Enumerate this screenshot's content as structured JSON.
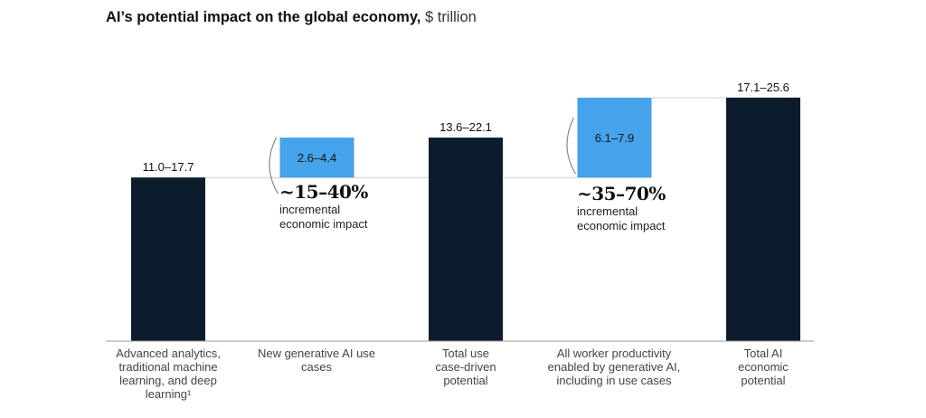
{
  "chart_data": {
    "type": "waterfall",
    "title": "AI’s potential impact on the global economy,",
    "unit": "$ trillion",
    "categories": [
      "Advanced analytics, traditional machine learning, and deep learning¹",
      "New generative AI use cases",
      "Total use case-driven potential",
      "All worker productivity enabled by generative AI, including in use cases",
      "Total AI economic potential"
    ],
    "bars": [
      {
        "label": "11.0–17.7",
        "low": 0,
        "high": 14.35,
        "kind": "total"
      },
      {
        "label": "2.6–4.4",
        "low": 14.35,
        "high": 17.85,
        "kind": "increment"
      },
      {
        "label": "13.6–22.1",
        "low": 0,
        "high": 17.85,
        "kind": "total"
      },
      {
        "label": "6.1–7.9",
        "low": 14.35,
        "high": 21.35,
        "kind": "increment"
      },
      {
        "label": "17.1–25.6",
        "low": 0,
        "high": 21.35,
        "kind": "total"
      }
    ],
    "annotations": [
      {
        "pct": "~15–40%",
        "text1": "incremental",
        "text2": "economic impact"
      },
      {
        "pct": "~35–70%",
        "text1": "incremental",
        "text2": "economic impact"
      }
    ],
    "ylim": [
      0,
      21.35
    ],
    "colors": {
      "total": "#0b1c2c",
      "increment": "#44a3ea",
      "guide": "#cccccc"
    }
  }
}
